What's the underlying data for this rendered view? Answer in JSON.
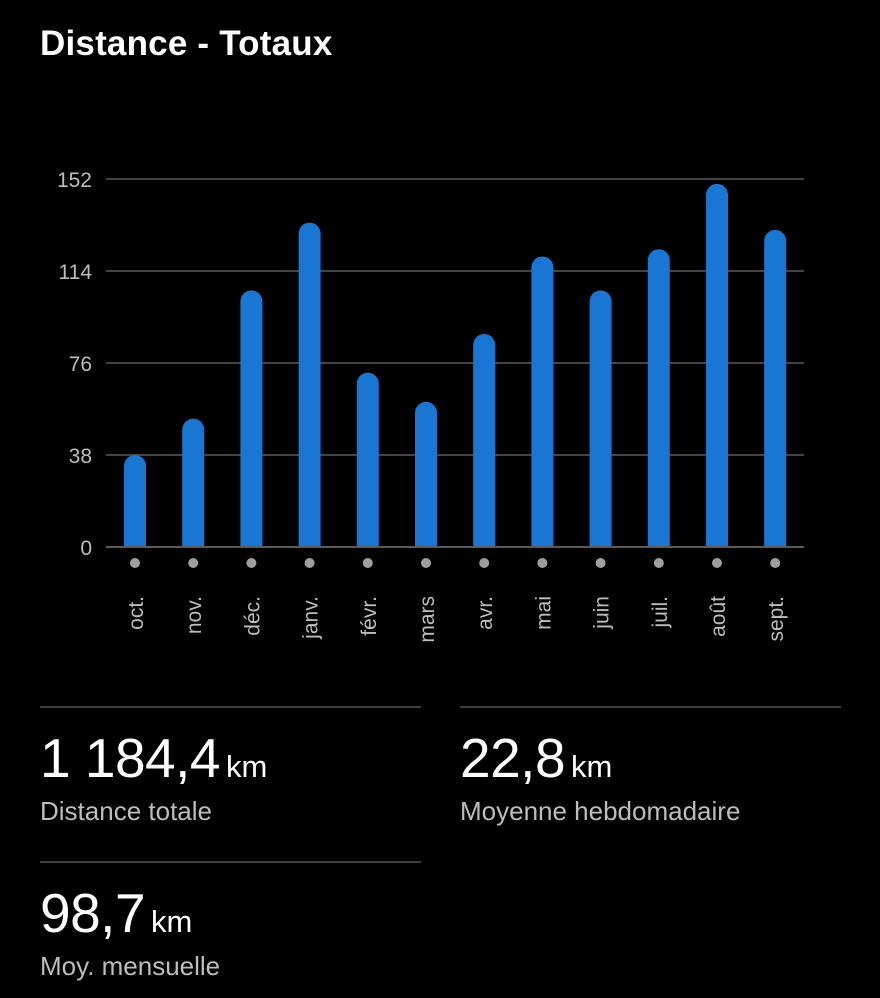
{
  "title": "Distance - Totaux",
  "chart_data": {
    "type": "bar",
    "categories": [
      "oct.",
      "nov.",
      "déc.",
      "janv.",
      "févr.",
      "mars",
      "avr.",
      "mai",
      "juin",
      "juil.",
      "août",
      "sept."
    ],
    "values": [
      38,
      53,
      106,
      134,
      72,
      60,
      88,
      120,
      106,
      123,
      150,
      131
    ],
    "yticks": [
      "0",
      "38",
      "76",
      "114",
      "152"
    ],
    "ylim": [
      0,
      152
    ],
    "grid": true,
    "bar_color": "#1976d2"
  },
  "stats": [
    {
      "value": "1 184,4",
      "unit": "km",
      "label": "Distance totale"
    },
    {
      "value": "22,8",
      "unit": "km",
      "label": "Moyenne hebdomadaire"
    },
    {
      "value": "98,7",
      "unit": "km",
      "label": "Moy. mensuelle"
    }
  ]
}
